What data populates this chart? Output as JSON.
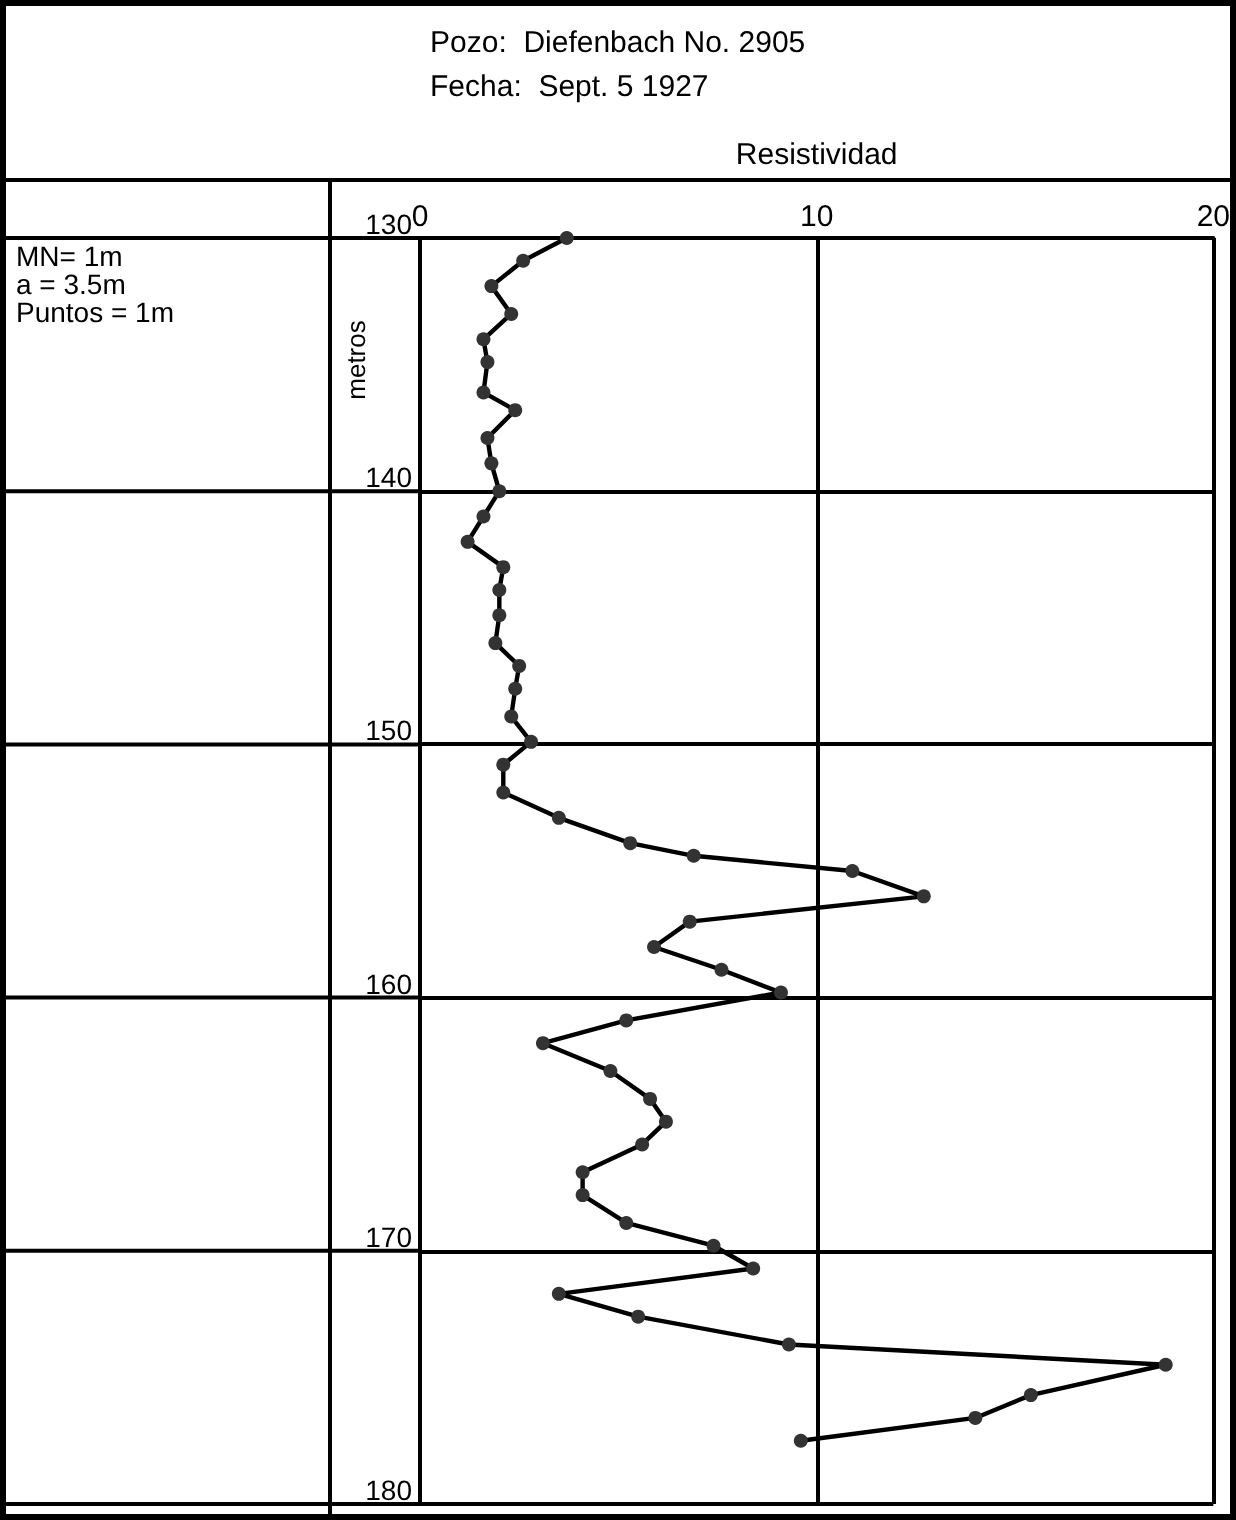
{
  "chart_data": {
    "type": "line",
    "title": "Pozo:  Diefenbach No. 2905",
    "subtitle": "Fecha:  Sept. 5 1927",
    "xlabel": "Resistividad",
    "ylabel": "metros",
    "annotations": [
      "MN= 1m",
      "a = 3.5m",
      "Puntos = 1m"
    ],
    "series": [
      {
        "color": "#333333",
        "x": [
          3.7,
          2.6,
          1.8,
          2.3,
          1.6,
          1.7,
          1.6,
          2.4,
          1.7,
          1.8,
          2.0,
          1.6,
          1.2,
          2.1,
          2.0,
          2.0,
          1.9,
          2.5,
          2.4,
          2.3,
          2.8,
          2.1,
          2.1,
          3.5,
          5.3,
          6.9,
          10.9,
          12.7,
          6.8,
          5.9,
          7.6,
          9.1,
          5.2,
          3.1,
          4.8,
          5.8,
          6.2,
          5.6,
          4.1,
          4.1,
          5.2,
          7.4,
          8.4,
          3.5,
          5.5,
          9.3,
          18.8,
          15.4,
          14.0,
          9.6
        ],
        "values": [
          130.0,
          130.9,
          131.9,
          133.0,
          134.0,
          134.9,
          136.1,
          136.8,
          137.9,
          138.9,
          140.0,
          141.0,
          142.0,
          143.0,
          143.9,
          144.9,
          146.0,
          146.9,
          147.8,
          148.9,
          149.9,
          150.8,
          151.9,
          152.9,
          153.9,
          154.4,
          155.0,
          156.0,
          157.0,
          158.0,
          158.9,
          159.8,
          160.9,
          161.8,
          162.9,
          164.0,
          164.9,
          165.8,
          166.9,
          167.8,
          168.9,
          169.8,
          170.7,
          171.7,
          172.6,
          173.7,
          174.5,
          175.7,
          176.6,
          177.5
        ]
      }
    ],
    "xlim": [
      0,
      20
    ],
    "xticks": [
      0,
      10,
      20
    ],
    "ylim": [
      180,
      130
    ],
    "yticks": [
      130,
      140,
      150,
      160,
      170,
      180
    ],
    "grid": true,
    "marker": "circle",
    "line_style": "solid"
  }
}
